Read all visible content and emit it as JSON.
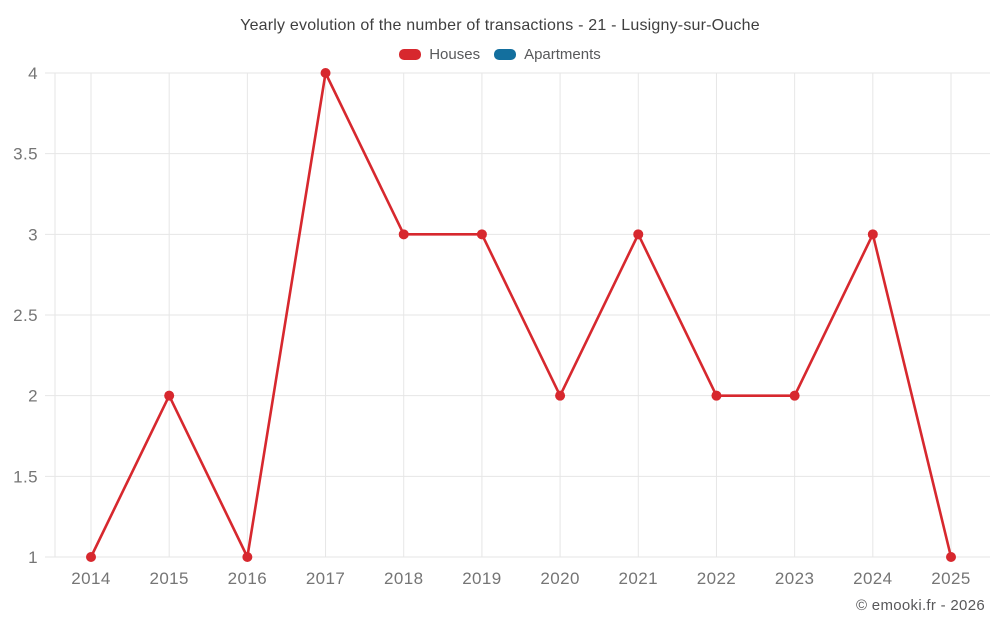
{
  "title": "Yearly evolution of the number of transactions - 21 - Lusigny-sur-Ouche",
  "legend": {
    "items": [
      {
        "label": "Houses",
        "color": "#d7282e"
      },
      {
        "label": "Apartments",
        "color": "#136f9e"
      }
    ]
  },
  "watermark": "© emooki.fr - 2026",
  "chart_data": {
    "type": "line",
    "title": "Yearly evolution of the number of transactions - 21 - Lusigny-sur-Ouche",
    "x": [
      2014,
      2015,
      2016,
      2017,
      2018,
      2019,
      2020,
      2021,
      2022,
      2023,
      2024,
      2025
    ],
    "series": [
      {
        "name": "Houses",
        "color": "#d7282e",
        "values": [
          1,
          2,
          1,
          4,
          3,
          3,
          2,
          3,
          2,
          2,
          3,
          1
        ]
      },
      {
        "name": "Apartments",
        "color": "#136f9e",
        "values": []
      }
    ],
    "xlabel": "",
    "ylabel": "",
    "ylim": [
      1,
      4
    ],
    "yticks": [
      1,
      1.5,
      2,
      2.5,
      3,
      3.5,
      4
    ],
    "grid": true,
    "legend_position": "top",
    "colors": {
      "gridline": "#e6e6e6",
      "tick_label": "#757575"
    }
  }
}
